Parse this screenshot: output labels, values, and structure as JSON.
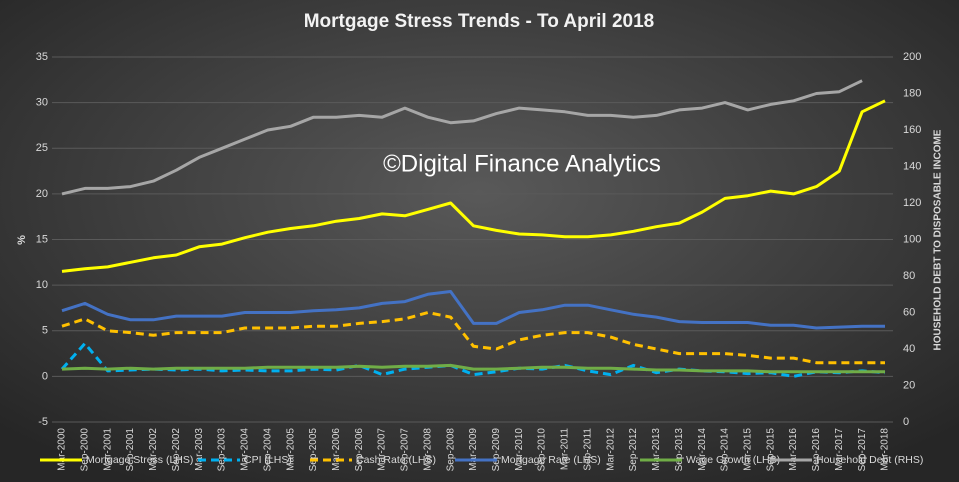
{
  "chart_data": {
    "type": "line",
    "title": "Mortgage Stress Trends - To April 2018",
    "annotation": "©Digital Finance Analytics",
    "ylabel": "%",
    "y2label": "HOUSEHOLD DEBT TO DISPOSABLE INCOME",
    "categories": [
      "Mar-2000",
      "Sep-2000",
      "Mar-2001",
      "Sep-2001",
      "Mar-2002",
      "Sep-2002",
      "Mar-2003",
      "Sep-2003",
      "Mar-2004",
      "Sep-2004",
      "Mar-2005",
      "Sep-2005",
      "Mar-2006",
      "Sep-2006",
      "Mar-2007",
      "Sep-2007",
      "Mar-2008",
      "Sep-2008",
      "Mar-2009",
      "Sep-2009",
      "Mar-2010",
      "Sep-2010",
      "Mar-2011",
      "Sep-2011",
      "Mar-2012",
      "Sep-2012",
      "Mar-2013",
      "Sep-2013",
      "Mar-2014",
      "Sep-2014",
      "Mar-2015",
      "Sep-2015",
      "Mar-2016",
      "Sep-2016",
      "Mar-2017",
      "Sep-2017",
      "Mar-2018"
    ],
    "ylim": [
      -5,
      35
    ],
    "yticks": [
      -5,
      0,
      5,
      10,
      15,
      20,
      25,
      30,
      35
    ],
    "y2lim": [
      0,
      200
    ],
    "y2ticks": [
      0,
      20,
      40,
      60,
      80,
      100,
      120,
      140,
      160,
      180,
      200
    ],
    "grid": true,
    "legend": "bottom",
    "series": [
      {
        "name": "Mortgage Stress (LHS)",
        "color": "#ffff00",
        "dash": false,
        "values": [
          11.5,
          11.8,
          12.0,
          12.5,
          13.0,
          13.3,
          14.2,
          14.5,
          15.2,
          15.8,
          16.2,
          16.5,
          17.0,
          17.3,
          17.8,
          17.6,
          18.3,
          19.0,
          16.5,
          16.0,
          15.6,
          15.5,
          15.3,
          15.3,
          15.5,
          15.9,
          16.4,
          16.8,
          18.0,
          19.5,
          19.8,
          20.3,
          20.0,
          20.8,
          22.5,
          29.0,
          30.2
        ]
      },
      {
        "name": "CPI (LHS)",
        "color": "#00b0f0",
        "dash": true,
        "values": [
          0.8,
          3.6,
          0.6,
          0.7,
          0.8,
          0.7,
          0.8,
          0.6,
          0.7,
          0.6,
          0.6,
          0.8,
          0.7,
          1.2,
          0.2,
          0.8,
          1.0,
          1.2,
          0.2,
          0.5,
          0.9,
          0.8,
          1.2,
          0.6,
          0.2,
          1.2,
          0.4,
          0.8,
          0.6,
          0.5,
          0.3,
          0.4,
          0.0,
          0.5,
          0.4,
          0.6,
          0.4
        ]
      },
      {
        "name": "Cash Rate (LHS)",
        "color": "#ffc000",
        "dash": true,
        "values": [
          5.5,
          6.3,
          5.0,
          4.8,
          4.5,
          4.8,
          4.8,
          4.8,
          5.3,
          5.3,
          5.3,
          5.5,
          5.5,
          5.8,
          6.0,
          6.3,
          7.0,
          6.5,
          3.3,
          3.0,
          4.0,
          4.5,
          4.8,
          4.8,
          4.3,
          3.5,
          3.0,
          2.5,
          2.5,
          2.5,
          2.3,
          2.0,
          2.0,
          1.5,
          1.5,
          1.5,
          1.5
        ]
      },
      {
        "name": "Mortgage Rate (LHS)",
        "color": "#4472c4",
        "dash": false,
        "values": [
          7.2,
          8.0,
          6.8,
          6.2,
          6.2,
          6.6,
          6.6,
          6.6,
          7.0,
          7.0,
          7.0,
          7.2,
          7.3,
          7.5,
          8.0,
          8.2,
          9.0,
          9.3,
          5.8,
          5.8,
          7.0,
          7.3,
          7.8,
          7.8,
          7.3,
          6.8,
          6.5,
          6.0,
          5.9,
          5.9,
          5.9,
          5.6,
          5.6,
          5.3,
          5.4,
          5.5,
          5.5
        ]
      },
      {
        "name": "Wage Growth (LHS)",
        "color": "#70ad47",
        "dash": false,
        "values": [
          0.8,
          0.9,
          0.8,
          0.9,
          0.8,
          0.9,
          0.9,
          0.9,
          0.9,
          1.0,
          1.0,
          1.0,
          1.0,
          1.1,
          1.0,
          1.1,
          1.1,
          1.2,
          0.8,
          0.8,
          0.9,
          1.0,
          1.0,
          0.9,
          0.9,
          0.8,
          0.7,
          0.7,
          0.6,
          0.6,
          0.6,
          0.5,
          0.5,
          0.5,
          0.5,
          0.5,
          0.5
        ]
      },
      {
        "name": "Household Debt (RHS)",
        "color": "#a6a6a6",
        "dash": false,
        "axis": "y2",
        "values": [
          125,
          128,
          128,
          129,
          132,
          138,
          145,
          150,
          155,
          160,
          162,
          167,
          167,
          168,
          167,
          172,
          167,
          164,
          165,
          169,
          172,
          171,
          170,
          168,
          168,
          167,
          168,
          171,
          172,
          175,
          171,
          174,
          176,
          180,
          181,
          187,
          null
        ]
      }
    ]
  }
}
